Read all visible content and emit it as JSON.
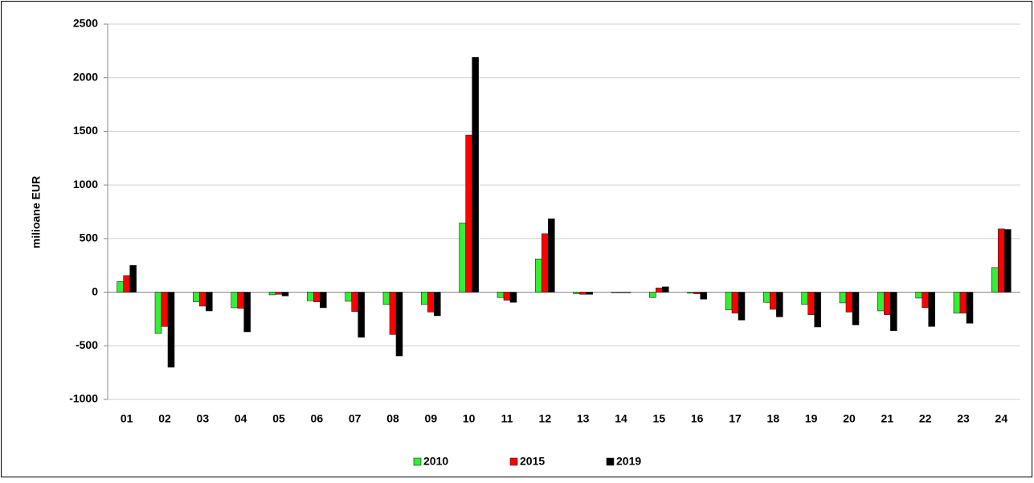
{
  "chart_data": {
    "type": "bar",
    "y_label": "milioane EUR",
    "categories": [
      "01",
      "02",
      "03",
      "04",
      "05",
      "06",
      "07",
      "08",
      "09",
      "10",
      "11",
      "12",
      "13",
      "14",
      "15",
      "16",
      "17",
      "18",
      "19",
      "20",
      "21",
      "22",
      "23",
      "24"
    ],
    "series": [
      {
        "name": "2010",
        "color": "#33ee33",
        "values": [
          100,
          -385,
          -90,
          -145,
          -25,
          -80,
          -85,
          -115,
          -115,
          645,
          -50,
          310,
          -15,
          -5,
          -50,
          -10,
          -165,
          -95,
          -115,
          -100,
          -175,
          -55,
          -195,
          230
        ]
      },
      {
        "name": "2015",
        "color": "#ff0000",
        "values": [
          155,
          -320,
          -130,
          -150,
          -20,
          -90,
          -180,
          -395,
          -185,
          1465,
          -75,
          545,
          -20,
          -5,
          40,
          -15,
          -195,
          -160,
          -210,
          -185,
          -210,
          -145,
          -195,
          590
        ]
      },
      {
        "name": "2019",
        "color": "#000000",
        "values": [
          250,
          -700,
          -175,
          -370,
          -35,
          -145,
          -420,
          -595,
          -220,
          2190,
          -95,
          685,
          -20,
          -5,
          50,
          -65,
          -260,
          -230,
          -325,
          -305,
          -360,
          -320,
          -290,
          585
        ]
      }
    ],
    "ylim": [
      -1000,
      2500
    ],
    "yticks": [
      -1000,
      -500,
      0,
      500,
      1000,
      1500,
      2000,
      2500
    ],
    "grid": true,
    "legend": "bottom"
  }
}
